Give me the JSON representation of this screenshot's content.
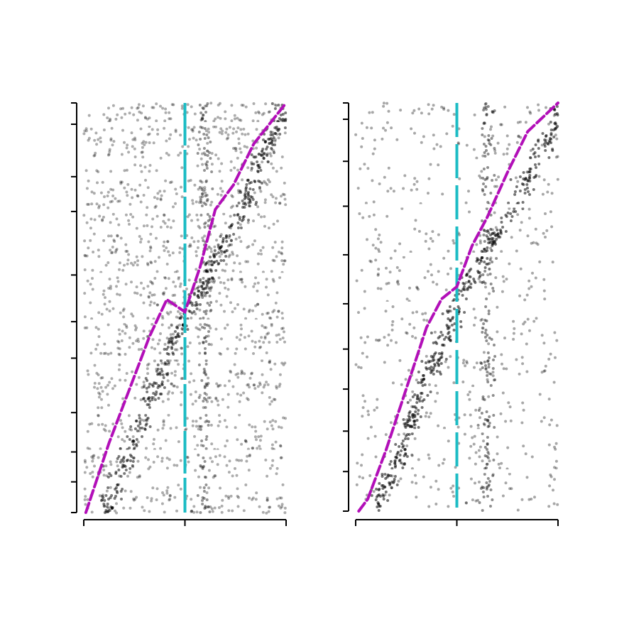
{
  "colors": {
    "background": "#ffffff",
    "dots": "#000000",
    "event_line": "#1cbcc4",
    "sort_line": "#b20fb8",
    "axis": "#000000"
  },
  "chart_data": [
    {
      "type": "scatter",
      "description_kind": "raster",
      "title": "",
      "xlabel": "",
      "ylabel": "",
      "xlim": [
        -1,
        1
      ],
      "ylim": [
        0,
        1
      ],
      "xticks": [
        -1,
        0,
        1
      ],
      "yticks": [
        0,
        0.075,
        0.148,
        0.244,
        0.377,
        0.466,
        0.58,
        0.735,
        0.82,
        0.948,
        1.0
      ],
      "event_line_x": 0,
      "sort_curve": {
        "points": [
          [
            -0.98,
            0.0
          ],
          [
            -0.75,
            0.17
          ],
          [
            -0.55,
            0.3
          ],
          [
            -0.35,
            0.43
          ],
          [
            -0.18,
            0.52
          ],
          [
            0.0,
            0.49
          ],
          [
            0.15,
            0.6
          ],
          [
            0.3,
            0.74
          ],
          [
            0.48,
            0.8
          ],
          [
            0.68,
            0.9
          ],
          [
            1.0,
            1.0
          ]
        ]
      },
      "sorted_band": {
        "points": [
          [
            -0.8,
            0.0
          ],
          [
            -0.5,
            0.18
          ],
          [
            -0.3,
            0.3
          ],
          [
            -0.1,
            0.42
          ],
          [
            0.05,
            0.5
          ],
          [
            0.18,
            0.55
          ],
          [
            0.35,
            0.64
          ],
          [
            0.55,
            0.72
          ],
          [
            0.72,
            0.85
          ],
          [
            0.9,
            0.93
          ],
          [
            1.0,
            0.97
          ]
        ]
      },
      "aligned_band_x": 0.2,
      "background_density": "high"
    },
    {
      "type": "scatter",
      "description_kind": "raster",
      "title": "",
      "xlabel": "",
      "ylabel": "",
      "xlim": [
        -1,
        1
      ],
      "ylim": [
        0,
        1
      ],
      "xticks": [
        -1,
        0,
        1
      ],
      "yticks": [
        0,
        0.097,
        0.196,
        0.299,
        0.397,
        0.508,
        0.628,
        0.747,
        0.857,
        0.96,
        1.0
      ],
      "event_line_x": 0,
      "sort_curve": {
        "points": [
          [
            -0.97,
            0.0
          ],
          [
            -0.88,
            0.03
          ],
          [
            -0.7,
            0.15
          ],
          [
            -0.5,
            0.3
          ],
          [
            -0.3,
            0.45
          ],
          [
            -0.15,
            0.52
          ],
          [
            0.0,
            0.55
          ],
          [
            0.15,
            0.65
          ],
          [
            0.3,
            0.72
          ],
          [
            0.5,
            0.83
          ],
          [
            0.7,
            0.93
          ],
          [
            1.0,
            1.0
          ]
        ]
      },
      "sorted_band": {
        "points": [
          [
            -0.82,
            0.0
          ],
          [
            -0.6,
            0.12
          ],
          [
            -0.4,
            0.26
          ],
          [
            -0.2,
            0.38
          ],
          [
            0.0,
            0.5
          ],
          [
            0.2,
            0.6
          ],
          [
            0.35,
            0.66
          ],
          [
            0.55,
            0.73
          ],
          [
            0.72,
            0.82
          ],
          [
            0.88,
            0.9
          ],
          [
            1.0,
            0.96
          ]
        ]
      },
      "aligned_band_x": 0.3,
      "background_density": "low"
    }
  ]
}
